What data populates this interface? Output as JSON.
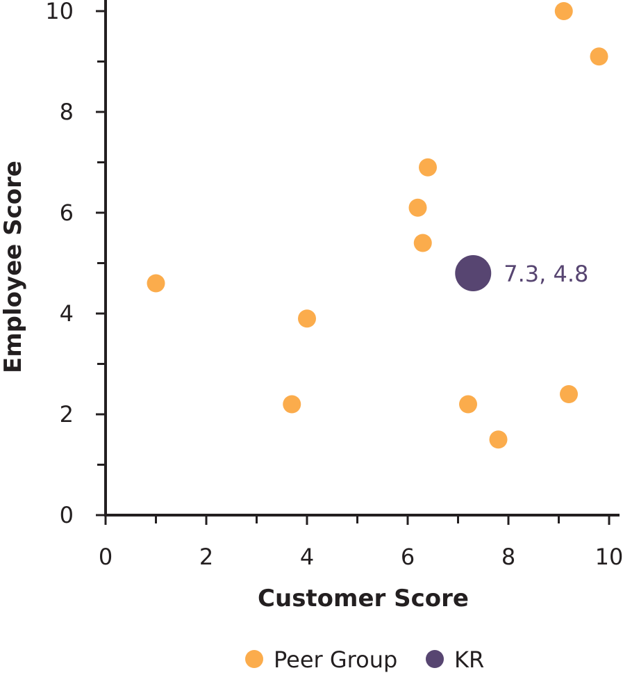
{
  "chart_data": {
    "type": "scatter",
    "xlabel": "Customer Score",
    "ylabel": "Employee Score",
    "xlim": [
      0,
      10
    ],
    "ylim": [
      0,
      10
    ],
    "x_ticks": [
      "0",
      "2",
      "4",
      "6",
      "8",
      "10"
    ],
    "y_ticks": [
      "0",
      "2",
      "4",
      "6",
      "8",
      "10"
    ],
    "grid": false,
    "legend_position": "bottom",
    "series": [
      {
        "name": "Peer Group",
        "color": "#fbac4c",
        "points": [
          {
            "x": 1.0,
            "y": 4.6
          },
          {
            "x": 3.7,
            "y": 2.2
          },
          {
            "x": 4.0,
            "y": 3.9
          },
          {
            "x": 6.2,
            "y": 6.1
          },
          {
            "x": 6.3,
            "y": 5.4
          },
          {
            "x": 6.4,
            "y": 6.9
          },
          {
            "x": 7.2,
            "y": 2.2
          },
          {
            "x": 7.8,
            "y": 1.5
          },
          {
            "x": 9.1,
            "y": 10.0
          },
          {
            "x": 9.2,
            "y": 2.4
          },
          {
            "x": 9.8,
            "y": 9.1
          }
        ]
      },
      {
        "name": "KR",
        "color": "#574571",
        "points": [
          {
            "x": 7.3,
            "y": 4.8,
            "label": "7.3, 4.8"
          }
        ]
      }
    ]
  }
}
